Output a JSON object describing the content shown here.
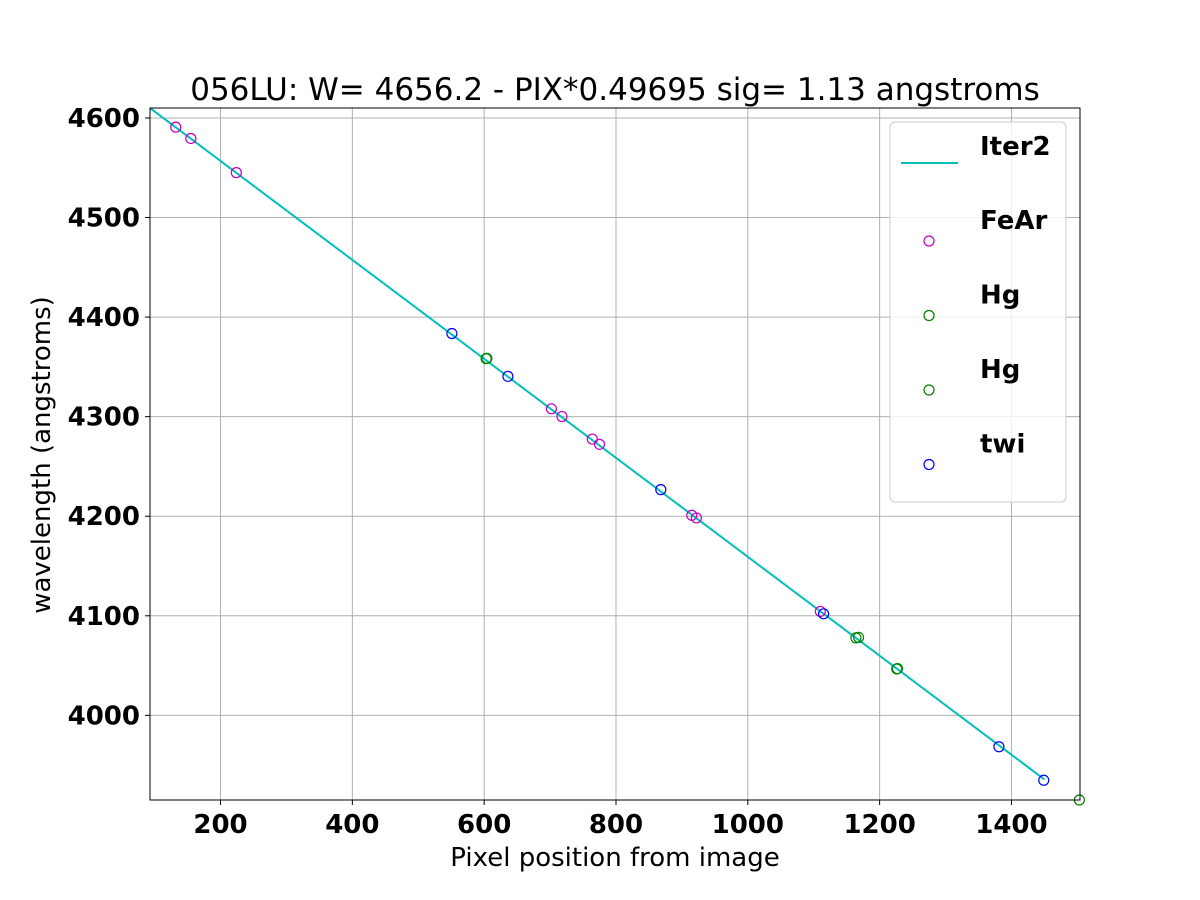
{
  "chart_data": {
    "type": "scatter",
    "title": "056LU: W= 4656.2 - PIX*0.49695  sig=  1.13 angstroms",
    "xlabel": "Pixel position from image",
    "ylabel": "wavelength (angstroms)",
    "xlim": [
      93,
      1504
    ],
    "ylim": [
      3915,
      4610
    ],
    "xticks": [
      200,
      400,
      600,
      800,
      1000,
      1200,
      1400
    ],
    "yticks": [
      4000,
      4100,
      4200,
      4300,
      4400,
      4500,
      4600
    ],
    "grid": true,
    "legend_position": "top-right",
    "fit_line": {
      "name": "Iter2",
      "color": "#00bfbf",
      "intercept": 4656.2,
      "slope": -0.49695,
      "x_range": [
        93,
        1450
      ]
    },
    "series": [
      {
        "name": "FeAr",
        "color": "#bf00bf",
        "points": [
          [
            132,
            4590.8
          ],
          [
            155,
            4579.4
          ],
          [
            224,
            4545.1
          ],
          [
            702,
            4307.9
          ],
          [
            718,
            4300.1
          ],
          [
            764,
            4277.5
          ],
          [
            775,
            4272.2
          ],
          [
            915,
            4201.0
          ],
          [
            922,
            4198.3
          ],
          [
            1110,
            4104.4
          ]
        ]
      },
      {
        "name": "Hg",
        "color": "#008000",
        "points": [
          [
            603,
            4358.3
          ],
          [
            1164,
            4077.8
          ],
          [
            1168,
            4078.3
          ],
          [
            1226,
            4046.6
          ],
          [
            1503,
            3915.0
          ]
        ]
      },
      {
        "name": "Hg",
        "color": "#008000",
        "points": [
          [
            604,
            4358.6
          ],
          [
            1227,
            4047.0
          ]
        ]
      },
      {
        "name": "twi",
        "color": "#0000ff",
        "points": [
          [
            551,
            4383.5
          ],
          [
            636,
            4340.5
          ],
          [
            868,
            4226.7
          ],
          [
            1115,
            4102.0
          ],
          [
            1381,
            3968.5
          ],
          [
            1449,
            3934.8
          ]
        ]
      }
    ]
  }
}
